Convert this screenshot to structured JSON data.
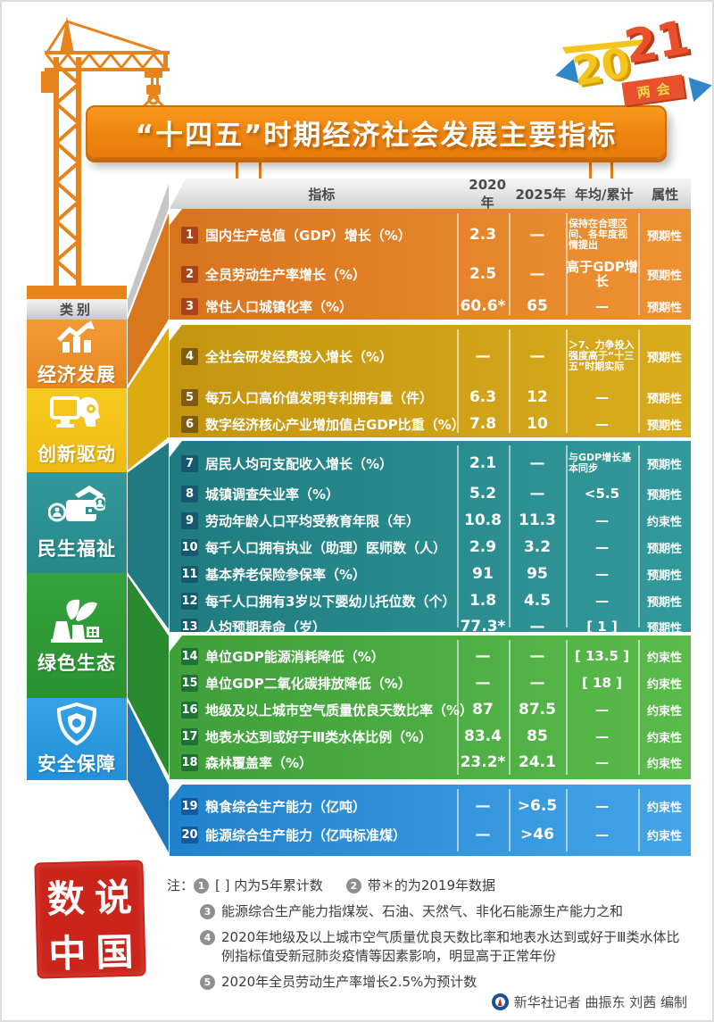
{
  "badge": {
    "year_left": "20",
    "year_right": "21",
    "label": "两会"
  },
  "title": "“十四五”时期经济社会发展主要指标",
  "sidebar": {
    "header": "类别",
    "items": [
      {
        "label": "经济发展",
        "icon": "growth-chart-icon",
        "color": "#ef9132"
      },
      {
        "label": "创新驱动",
        "icon": "monitor-head-icon",
        "color": "#f3c41d"
      },
      {
        "label": "民生福祉",
        "icon": "wallet-house-icon",
        "color": "#2d9191"
      },
      {
        "label": "绿色生态",
        "icon": "leaf-plant-icon",
        "color": "#2f9b37"
      },
      {
        "label": "安全保障",
        "icon": "shield-icon",
        "color": "#2f9ce2"
      }
    ]
  },
  "table_headers": {
    "indicator": "指标",
    "y2020": "2020年",
    "y2025": "2025年",
    "annual": "年均/累计",
    "attr": "属性"
  },
  "chart_data": {
    "type": "table",
    "title": "“十四五”时期经济社会发展主要指标",
    "columns": [
      "指标",
      "2020年",
      "2025年",
      "年均/累计",
      "属性"
    ],
    "sections": [
      {
        "category": "经济发展",
        "color": "#e8821e",
        "rows": [
          {
            "no": "1",
            "name": "国内生产总值（GDP）增长（%）",
            "v2020": "2.3",
            "v2025": "—",
            "annual": "保持在合理区间、各年度视情提出",
            "attr": "预期性"
          },
          {
            "no": "2",
            "name": "全员劳动生产率增长（%）",
            "v2020": "2.5",
            "v2025": "—",
            "annual": "高于GDP增长",
            "attr": "预期性"
          },
          {
            "no": "3",
            "name": "常住人口城镇化率（%）",
            "v2020": "60.6*",
            "v2025": "65",
            "annual": "—",
            "attr": "预期性"
          }
        ]
      },
      {
        "category": "创新驱动",
        "color": "#cc9e14",
        "rows": [
          {
            "no": "4",
            "name": "全社会研发经费投入增长（%）",
            "v2020": "—",
            "v2025": "—",
            "annual": "＞7、力争投入强度高于“十三五”时期实际",
            "attr": "预期性"
          },
          {
            "no": "5",
            "name": "每万人口高价值发明专利拥有量（件）",
            "v2020": "6.3",
            "v2025": "12",
            "annual": "—",
            "attr": "预期性"
          },
          {
            "no": "6",
            "name": "数字经济核心产业增加值占GDP比重（%）",
            "v2020": "7.8",
            "v2025": "10",
            "annual": "—",
            "attr": "预期性"
          }
        ]
      },
      {
        "category": "民生福祉",
        "color": "#27888a",
        "rows": [
          {
            "no": "7",
            "name": "居民人均可支配收入增长（%）",
            "v2020": "2.1",
            "v2025": "—",
            "annual": "与GDP增长基本同步",
            "attr": "预期性"
          },
          {
            "no": "8",
            "name": "城镇调查失业率（%）",
            "v2020": "5.2",
            "v2025": "—",
            "annual": "<5.5",
            "attr": "预期性"
          },
          {
            "no": "9",
            "name": "劳动年龄人口平均受教育年限（年）",
            "v2020": "10.8",
            "v2025": "11.3",
            "annual": "—",
            "attr": "约束性"
          },
          {
            "no": "10",
            "name": "每千人口拥有执业（助理）医师数（人）",
            "v2020": "2.9",
            "v2025": "3.2",
            "annual": "—",
            "attr": "预期性"
          },
          {
            "no": "11",
            "name": "基本养老保险参保率（%）",
            "v2020": "91",
            "v2025": "95",
            "annual": "—",
            "attr": "预期性"
          },
          {
            "no": "12",
            "name": "每千人口拥有3岁以下婴幼儿托位数（个）",
            "v2020": "1.8",
            "v2025": "4.5",
            "annual": "—",
            "attr": "预期性"
          },
          {
            "no": "13",
            "name": "人均预期寿命（岁）",
            "v2020": "77.3*",
            "v2025": "—",
            "annual": "[ 1 ]",
            "attr": "预期性"
          }
        ]
      },
      {
        "category": "绿色生态",
        "color": "#4aad42",
        "rows": [
          {
            "no": "14",
            "name": "单位GDP能源消耗降低（%）",
            "v2020": "—",
            "v2025": "—",
            "annual": "[ 13.5 ]",
            "attr": "约束性"
          },
          {
            "no": "15",
            "name": "单位GDP二氧化碳排放降低（%）",
            "v2020": "—",
            "v2025": "—",
            "annual": "[ 18 ]",
            "attr": "约束性"
          },
          {
            "no": "16",
            "name": "地级及以上城市空气质量优良天数比率（%）",
            "v2020": "87",
            "v2025": "87.5",
            "annual": "—",
            "attr": "约束性"
          },
          {
            "no": "17",
            "name": "地表水达到或好于Ⅲ类水体比例（%）",
            "v2020": "83.4",
            "v2025": "85",
            "annual": "—",
            "attr": "约束性"
          },
          {
            "no": "18",
            "name": "森林覆盖率（%）",
            "v2020": "23.2*",
            "v2025": "24.1",
            "annual": "—",
            "attr": "约束性"
          }
        ]
      },
      {
        "category": "安全保障",
        "color": "#2e93d9",
        "rows": [
          {
            "no": "19",
            "name": "粮食综合生产能力（亿吨）",
            "v2020": "—",
            "v2025": ">6.5",
            "annual": "—",
            "attr": "约束性"
          },
          {
            "no": "20",
            "name": "能源综合生产能力（亿吨标准煤）",
            "v2020": "—",
            "v2025": ">46",
            "annual": "—",
            "attr": "约束性"
          }
        ]
      }
    ]
  },
  "notes": {
    "label": "注：",
    "items": [
      {
        "num": "1",
        "text": "[ ] 内为5年累计数"
      },
      {
        "num": "2",
        "text": "带＊的为2019年数据"
      },
      {
        "num": "3",
        "text": "能源综合生产能力指煤炭、石油、天然气、非化石能源生产能力之和"
      },
      {
        "num": "4",
        "text": "2020年地级及以上城市空气质量优良天数比率和地表水达到或好于Ⅲ类水体比例指标值受新冠肺炎疫情等因素影响，明显高于正常年份"
      },
      {
        "num": "5",
        "text": "2020年全员劳动生产率增长2.5%为预计数"
      }
    ]
  },
  "seal": {
    "chars": [
      "数",
      "说",
      "中",
      "国"
    ]
  },
  "credit": "新华社记者 曲振东 刘茜 编制",
  "colors": {
    "orange": "#e8821e",
    "gold": "#cc9e14",
    "teal": "#27888a",
    "green": "#4aad42",
    "blue": "#2e93d9",
    "banner": "#ee8410",
    "seal_red": "#cb241b",
    "badge_red": "#e8512b",
    "badge_yellow": "#f2c41c",
    "ribbon_blue": "#2f86c9"
  }
}
